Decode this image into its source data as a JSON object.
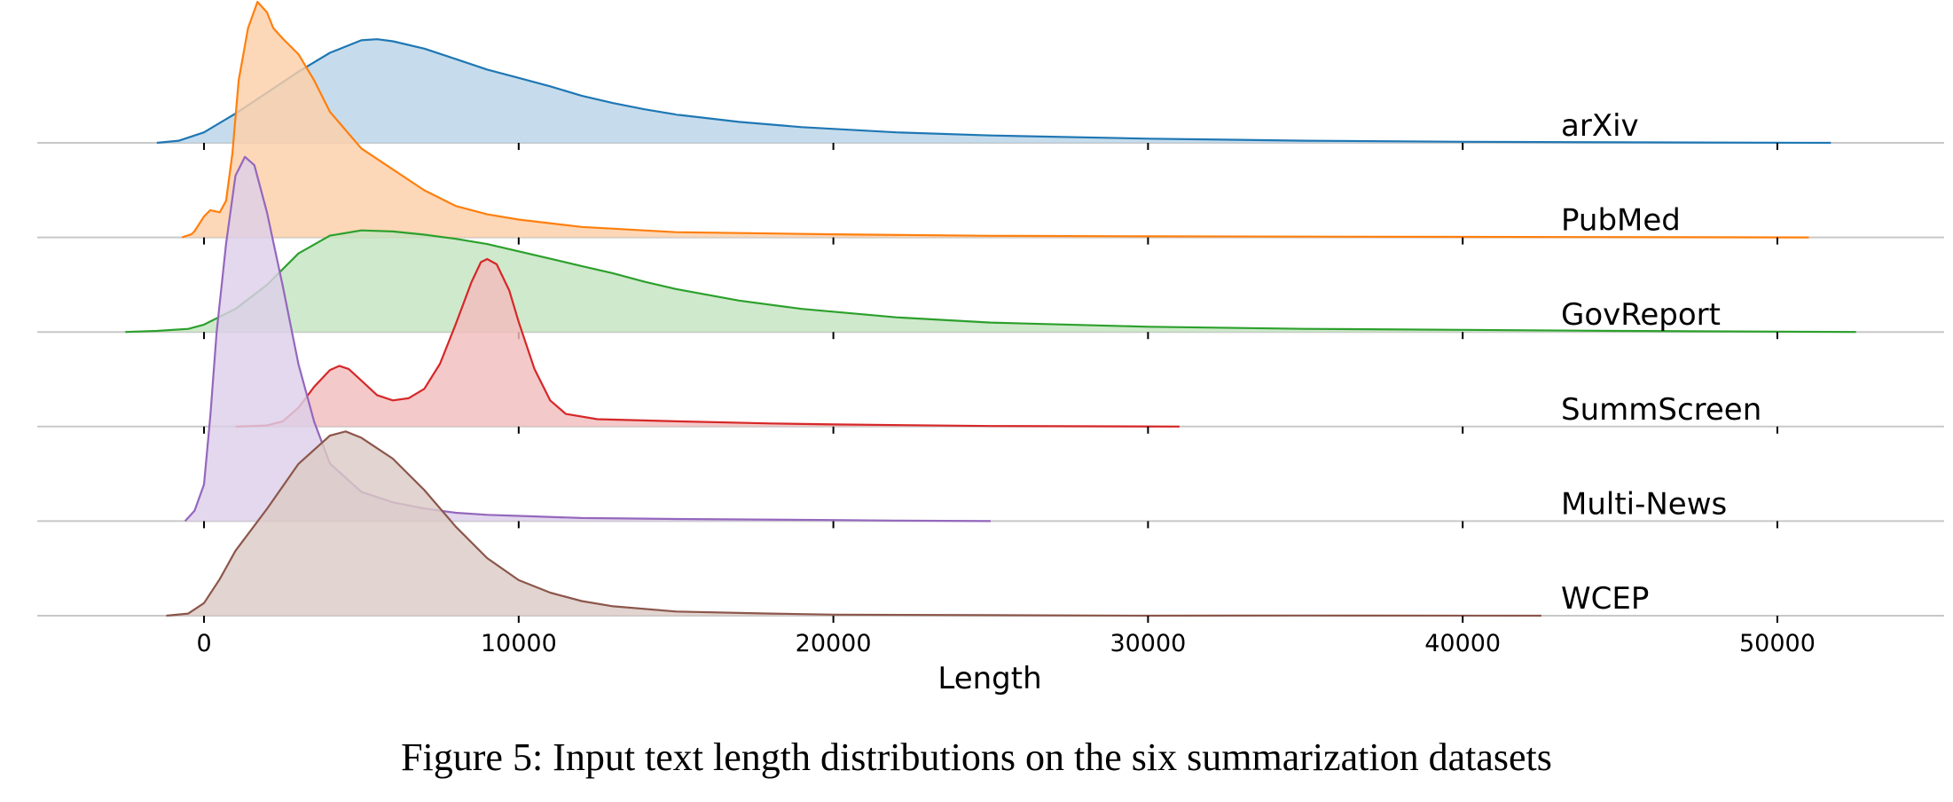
{
  "chart_data": {
    "type": "area",
    "title": "",
    "xlabel": "Length",
    "ylabel": "",
    "xlim": [
      -5300,
      55300
    ],
    "x_ticks": [
      0,
      10000,
      20000,
      30000,
      40000,
      50000
    ],
    "x_tick_labels": [
      "0",
      "10000",
      "20000",
      "30000",
      "40000",
      "50000"
    ],
    "grid": false,
    "legend": "none",
    "series": [
      {
        "name": "arXiv",
        "color": "#1f77b4",
        "fill": "#b9d4e8",
        "points": [
          [
            -1500,
            0
          ],
          [
            -800,
            0.02
          ],
          [
            0,
            0.1
          ],
          [
            1000,
            0.28
          ],
          [
            2000,
            0.48
          ],
          [
            3000,
            0.68
          ],
          [
            4000,
            0.86
          ],
          [
            5000,
            0.98
          ],
          [
            5500,
            0.99
          ],
          [
            6000,
            0.97
          ],
          [
            7000,
            0.9
          ],
          [
            8000,
            0.8
          ],
          [
            9000,
            0.7
          ],
          [
            10000,
            0.62
          ],
          [
            11000,
            0.54
          ],
          [
            12000,
            0.45
          ],
          [
            13000,
            0.38
          ],
          [
            14000,
            0.32
          ],
          [
            15000,
            0.27
          ],
          [
            17000,
            0.2
          ],
          [
            19000,
            0.15
          ],
          [
            22000,
            0.1
          ],
          [
            25000,
            0.07
          ],
          [
            30000,
            0.04
          ],
          [
            35000,
            0.02
          ],
          [
            40000,
            0.01
          ],
          [
            45000,
            0.005
          ],
          [
            51700,
            0
          ]
        ]
      },
      {
        "name": "PubMed",
        "color": "#ff7f0e",
        "fill": "#fdcfa8",
        "points": [
          [
            -700,
            0
          ],
          [
            -400,
            0.03
          ],
          [
            -300,
            0.06
          ],
          [
            0,
            0.2
          ],
          [
            200,
            0.26
          ],
          [
            500,
            0.24
          ],
          [
            700,
            0.35
          ],
          [
            900,
            0.8
          ],
          [
            1100,
            1.5
          ],
          [
            1400,
            2.0
          ],
          [
            1700,
            2.25
          ],
          [
            2000,
            2.15
          ],
          [
            2200,
            2.0
          ],
          [
            2500,
            1.9
          ],
          [
            3000,
            1.75
          ],
          [
            3500,
            1.5
          ],
          [
            4000,
            1.2
          ],
          [
            5000,
            0.85
          ],
          [
            6000,
            0.65
          ],
          [
            7000,
            0.45
          ],
          [
            8000,
            0.3
          ],
          [
            9000,
            0.22
          ],
          [
            10000,
            0.17
          ],
          [
            12000,
            0.1
          ],
          [
            15000,
            0.05
          ],
          [
            20000,
            0.03
          ],
          [
            25000,
            0.015
          ],
          [
            30000,
            0.01
          ],
          [
            40000,
            0.005
          ],
          [
            51000,
            0
          ]
        ]
      },
      {
        "name": "GovReport",
        "color": "#2ca02c",
        "fill": "#c4e4c1",
        "points": [
          [
            -2500,
            0
          ],
          [
            -1500,
            0.01
          ],
          [
            -500,
            0.03
          ],
          [
            0,
            0.07
          ],
          [
            1000,
            0.22
          ],
          [
            2000,
            0.45
          ],
          [
            3000,
            0.75
          ],
          [
            4000,
            0.92
          ],
          [
            5000,
            0.97
          ],
          [
            6000,
            0.96
          ],
          [
            7000,
            0.93
          ],
          [
            8000,
            0.89
          ],
          [
            9000,
            0.84
          ],
          [
            10000,
            0.77
          ],
          [
            11000,
            0.7
          ],
          [
            12000,
            0.63
          ],
          [
            13000,
            0.56
          ],
          [
            14000,
            0.48
          ],
          [
            15000,
            0.41
          ],
          [
            17000,
            0.3
          ],
          [
            19000,
            0.22
          ],
          [
            22000,
            0.14
          ],
          [
            25000,
            0.09
          ],
          [
            30000,
            0.05
          ],
          [
            35000,
            0.03
          ],
          [
            40000,
            0.02
          ],
          [
            45000,
            0.01
          ],
          [
            52500,
            0
          ]
        ]
      },
      {
        "name": "SummScreen",
        "color": "#d62728",
        "fill": "#f2bdbd",
        "points": [
          [
            1000,
            0
          ],
          [
            2000,
            0.01
          ],
          [
            2500,
            0.05
          ],
          [
            3000,
            0.18
          ],
          [
            3500,
            0.38
          ],
          [
            4000,
            0.54
          ],
          [
            4300,
            0.58
          ],
          [
            4600,
            0.55
          ],
          [
            5000,
            0.44
          ],
          [
            5500,
            0.3
          ],
          [
            6000,
            0.25
          ],
          [
            6500,
            0.27
          ],
          [
            7000,
            0.36
          ],
          [
            7500,
            0.6
          ],
          [
            8000,
            0.98
          ],
          [
            8500,
            1.38
          ],
          [
            8800,
            1.57
          ],
          [
            9000,
            1.6
          ],
          [
            9300,
            1.55
          ],
          [
            9700,
            1.3
          ],
          [
            10000,
            1.0
          ],
          [
            10500,
            0.55
          ],
          [
            11000,
            0.25
          ],
          [
            11500,
            0.12
          ],
          [
            12500,
            0.07
          ],
          [
            15000,
            0.05
          ],
          [
            18000,
            0.03
          ],
          [
            20000,
            0.02
          ],
          [
            25000,
            0.005
          ],
          [
            31000,
            0
          ]
        ]
      },
      {
        "name": "Multi-News",
        "color": "#9467bd",
        "fill": "#ddd0e9",
        "points": [
          [
            -600,
            0
          ],
          [
            -300,
            0.1
          ],
          [
            0,
            0.35
          ],
          [
            200,
            1.0
          ],
          [
            400,
            1.8
          ],
          [
            700,
            2.65
          ],
          [
            1000,
            3.3
          ],
          [
            1300,
            3.48
          ],
          [
            1600,
            3.4
          ],
          [
            2000,
            2.95
          ],
          [
            2500,
            2.25
          ],
          [
            3000,
            1.5
          ],
          [
            3500,
            0.95
          ],
          [
            4000,
            0.55
          ],
          [
            5000,
            0.28
          ],
          [
            6000,
            0.18
          ],
          [
            7000,
            0.12
          ],
          [
            8000,
            0.08
          ],
          [
            9000,
            0.06
          ],
          [
            10000,
            0.05
          ],
          [
            12000,
            0.03
          ],
          [
            15000,
            0.02
          ],
          [
            20000,
            0.01
          ],
          [
            22000,
            0.005
          ],
          [
            25000,
            0
          ]
        ]
      },
      {
        "name": "WCEP",
        "color": "#8c564b",
        "fill": "#dccbc6",
        "points": [
          [
            -1200,
            0
          ],
          [
            -500,
            0.02
          ],
          [
            0,
            0.12
          ],
          [
            500,
            0.35
          ],
          [
            1000,
            0.62
          ],
          [
            2000,
            1.02
          ],
          [
            3000,
            1.45
          ],
          [
            4000,
            1.72
          ],
          [
            4500,
            1.76
          ],
          [
            5000,
            1.7
          ],
          [
            6000,
            1.5
          ],
          [
            7000,
            1.2
          ],
          [
            8000,
            0.85
          ],
          [
            9000,
            0.55
          ],
          [
            10000,
            0.34
          ],
          [
            11000,
            0.22
          ],
          [
            12000,
            0.14
          ],
          [
            13000,
            0.09
          ],
          [
            15000,
            0.04
          ],
          [
            18000,
            0.02
          ],
          [
            20000,
            0.01
          ],
          [
            25000,
            0.005
          ],
          [
            30000,
            0
          ],
          [
            35000,
            0.002
          ],
          [
            42500,
            0
          ]
        ]
      }
    ]
  },
  "caption": "Figure 5: Input text length distributions on the six summarization datasets"
}
